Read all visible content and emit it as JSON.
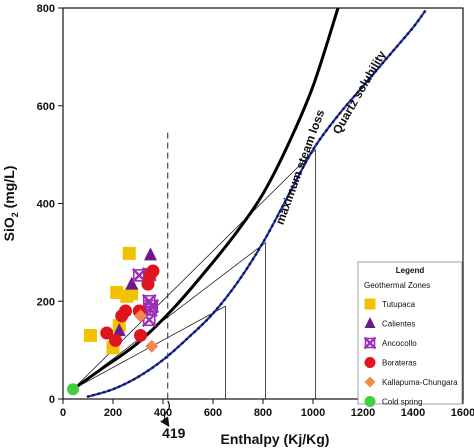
{
  "chart_data": {
    "type": "scatter",
    "xlabel": "Enthalpy (Kj/Kg)",
    "ylabel_main": "SiO",
    "ylabel_sub": "2",
    "ylabel_tail": " (mg/L)",
    "xlim": [
      0,
      1600
    ],
    "ylim": [
      0,
      800
    ],
    "xticks": [
      0,
      200,
      400,
      600,
      800,
      1000,
      1200,
      1400,
      1600
    ],
    "yticks": [
      0,
      200,
      400,
      600,
      800
    ],
    "grid": false,
    "legend_placement": "bottom-right",
    "legend": {
      "title": "Legend",
      "subtitle": "Geothermal Zones"
    },
    "series": [
      {
        "name": "Tutupaca",
        "marker": "square",
        "color": "#f2c200",
        "points": [
          [
            110,
            130
          ],
          [
            200,
            105
          ],
          [
            215,
            218
          ],
          [
            225,
            150
          ],
          [
            255,
            210
          ],
          [
            265,
            298
          ],
          [
            275,
            215
          ]
        ]
      },
      {
        "name": "Calientes",
        "marker": "triangle",
        "color": "#6b1a8e",
        "points": [
          [
            225,
            140
          ],
          [
            275,
            235
          ],
          [
            350,
            295
          ]
        ]
      },
      {
        "name": "Ancocollo",
        "marker": "xsquare",
        "color": "#9b2fb8",
        "points": [
          [
            305,
            253
          ],
          [
            345,
            255
          ],
          [
            345,
            200
          ],
          [
            350,
            183
          ],
          [
            345,
            162
          ],
          [
            355,
            190
          ]
        ]
      },
      {
        "name": "Borateras",
        "marker": "circle",
        "color": "#e0141e",
        "points": [
          [
            175,
            135
          ],
          [
            210,
            120
          ],
          [
            235,
            170
          ],
          [
            250,
            180
          ],
          [
            305,
            180
          ],
          [
            310,
            130
          ],
          [
            340,
            235
          ],
          [
            350,
            255
          ],
          [
            360,
            262
          ]
        ]
      },
      {
        "name": "Kallapuma-Chungara",
        "marker": "diamond",
        "color": "#ef8a50",
        "points": [
          [
            310,
            170
          ],
          [
            355,
            108
          ]
        ]
      },
      {
        "name": "Cold spring",
        "marker": "circle",
        "color": "#3fcf3f",
        "points": [
          [
            40,
            20
          ]
        ]
      }
    ],
    "curves": [
      {
        "name": "maximum steam loss",
        "color": "#000000",
        "points": [
          [
            40,
            20
          ],
          [
            150,
            60
          ],
          [
            300,
            115
          ],
          [
            450,
            190
          ],
          [
            600,
            280
          ],
          [
            700,
            345
          ],
          [
            800,
            420
          ],
          [
            900,
            520
          ],
          [
            1000,
            640
          ],
          [
            1100,
            800
          ]
        ]
      },
      {
        "name": "Quartz solubility",
        "color": "#1c2fb8",
        "points": [
          [
            100,
            5
          ],
          [
            200,
            20
          ],
          [
            300,
            45
          ],
          [
            400,
            80
          ],
          [
            500,
            125
          ],
          [
            600,
            175
          ],
          [
            700,
            240
          ],
          [
            800,
            320
          ],
          [
            900,
            415
          ],
          [
            1000,
            510
          ],
          [
            1100,
            580
          ],
          [
            1200,
            640
          ],
          [
            1300,
            700
          ],
          [
            1400,
            760
          ],
          [
            1450,
            795
          ]
        ]
      }
    ],
    "mixing_lines": [
      {
        "from": [
          40,
          20
        ],
        "to": [
          1010,
          510
        ]
      },
      {
        "from": [
          40,
          20
        ],
        "to": [
          810,
          320
        ]
      },
      {
        "from": [
          40,
          20
        ],
        "to": [
          650,
          190
        ]
      }
    ],
    "vertical_drops": [
      {
        "x": 650,
        "y_top": 190
      },
      {
        "x": 810,
        "y_top": 320
      },
      {
        "x": 1010,
        "y_top": 510
      }
    ],
    "dashed_line": {
      "x": 419,
      "label": "419"
    }
  }
}
